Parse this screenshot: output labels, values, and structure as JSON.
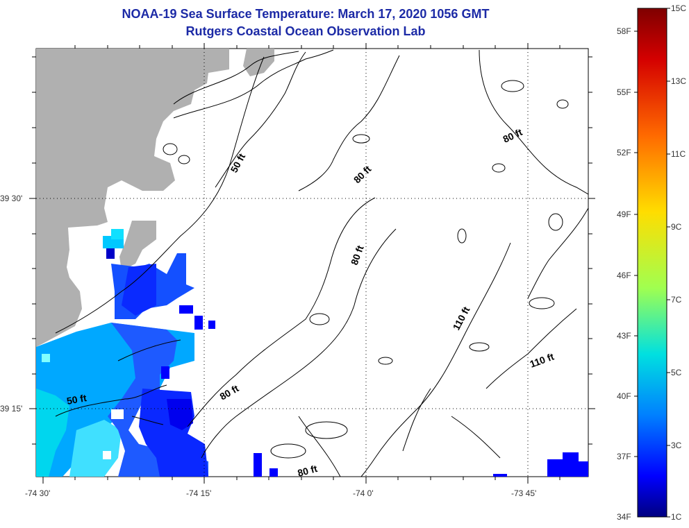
{
  "title_line1": "NOAA-19 Sea Surface Temperature:  March 17, 2020 1056 GMT",
  "title_line2": "Rutgers Coastal Ocean Observation Lab",
  "lat_labels": [
    "39 30'",
    "39 15'"
  ],
  "lon_labels": [
    "-74 30'",
    "-74 15'",
    "-74 0'",
    "-73 45'"
  ],
  "contour_labels": [
    "50 ft",
    "50 ft",
    "80 ft",
    "80 ft",
    "80 ft",
    "80 ft",
    "80 ft",
    "110 ft",
    "110 ft"
  ],
  "colorbar": {
    "f_labels": [
      "58F",
      "55F",
      "52F",
      "49F",
      "46F",
      "43F",
      "40F",
      "37F",
      "34F"
    ],
    "c_labels": [
      "15C",
      "13C",
      "11C",
      "9C",
      "7C",
      "5C",
      "3C",
      "1C"
    ],
    "colors": [
      "#7f0000",
      "#ff0000",
      "#ffff00",
      "#00ffff",
      "#0000ff",
      "#000080"
    ]
  },
  "colors": {
    "land": "#b0b0b0",
    "title": "#1c2aa6"
  }
}
